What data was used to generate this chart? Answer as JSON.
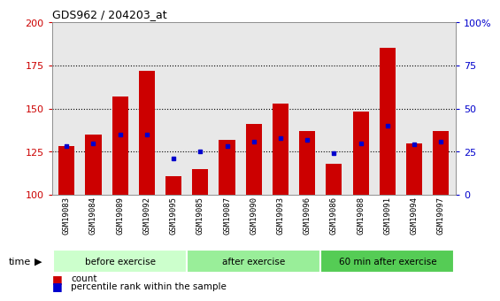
{
  "title": "GDS962 / 204203_at",
  "categories": [
    "GSM19083",
    "GSM19084",
    "GSM19089",
    "GSM19092",
    "GSM19095",
    "GSM19085",
    "GSM19087",
    "GSM19090",
    "GSM19093",
    "GSM19096",
    "GSM19086",
    "GSM19088",
    "GSM19091",
    "GSM19094",
    "GSM19097"
  ],
  "bar_tops": [
    128,
    135,
    157,
    172,
    111,
    115,
    132,
    141,
    153,
    137,
    118,
    148,
    185,
    130,
    137
  ],
  "bar_bottom": 100,
  "percentile_values": [
    128,
    130,
    135,
    135,
    121,
    125,
    128,
    131,
    133,
    132,
    124,
    130,
    140,
    129,
    131
  ],
  "groups": [
    {
      "label": "before exercise",
      "start": 0,
      "end": 5,
      "color": "#ccffcc"
    },
    {
      "label": "after exercise",
      "start": 5,
      "end": 10,
      "color": "#99ee99"
    },
    {
      "label": "60 min after exercise",
      "start": 10,
      "end": 15,
      "color": "#55cc55"
    }
  ],
  "ylim_left": [
    100,
    200
  ],
  "ylim_right": [
    0,
    100
  ],
  "yticks_left": [
    100,
    125,
    150,
    175,
    200
  ],
  "yticks_right": [
    0,
    25,
    50,
    75,
    100
  ],
  "yticklabels_right": [
    "0",
    "25",
    "50",
    "75",
    "100%"
  ],
  "bar_color": "#cc0000",
  "percentile_color": "#0000cc",
  "background_color": "#ffffff",
  "plot_bg_color": "#e8e8e8",
  "dotted_lines": [
    125,
    150,
    175
  ],
  "legend_count_label": "count",
  "legend_pct_label": "percentile rank within the sample",
  "time_label": "time",
  "bar_width": 0.6
}
